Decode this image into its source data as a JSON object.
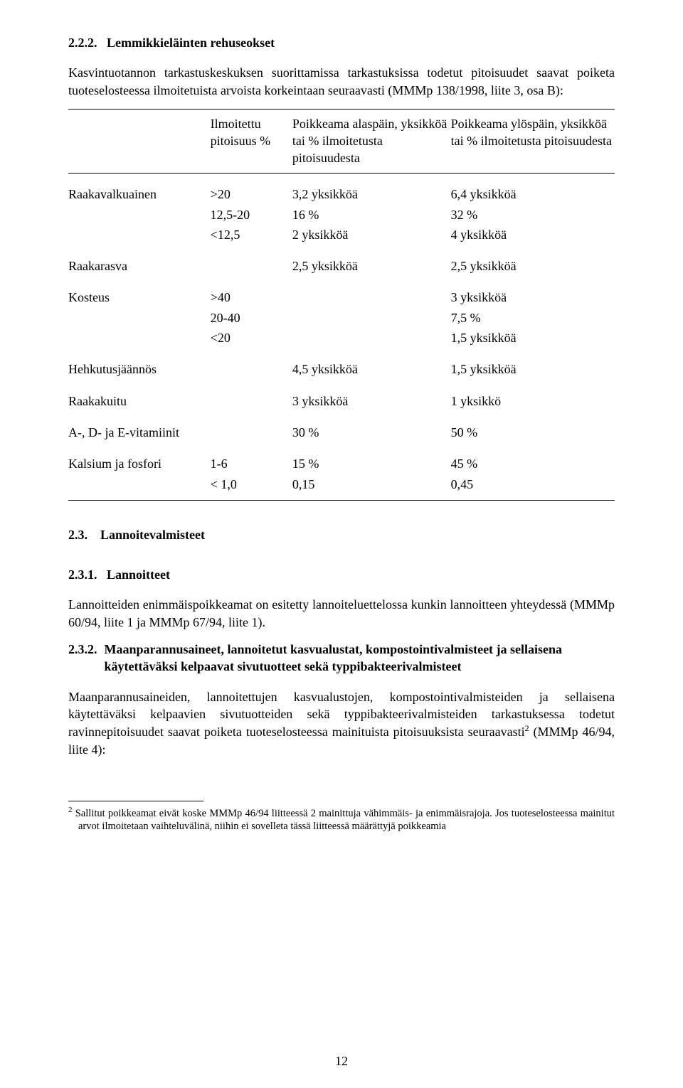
{
  "section_222": {
    "number": "2.2.2.",
    "title": "Lemmikkieläinten rehuseokset",
    "intro": "Kasvintuotannon tarkastuskeskuksen suorittamissa tarkastuksissa todetut pitoisuudet saavat poiketa tuoteselosteessa ilmoitetuista arvoista korkeintaan seuraavasti (MMMp 138/1998, liite 3, osa B):"
  },
  "table": {
    "headers": {
      "c1": "Ilmoitettu pitoisuus %",
      "c2": "Poikkeama alaspäin, yksikköä tai % ilmoitetusta pitoisuudesta",
      "c3": "Poikkeama ylöspäin, yksikköä tai % ilmoitetusta pitoisuudesta"
    },
    "groups": [
      {
        "label": "Raakavalkuainen",
        "rows": [
          {
            "c1": ">20",
            "c2": "3,2 yksikköä",
            "c3": "6,4 yksikköä"
          },
          {
            "c1": "12,5-20",
            "c2": "16 %",
            "c3": "32 %"
          },
          {
            "c1": "<12,5",
            "c2": "2 yksikköä",
            "c3": "4 yksikköä"
          }
        ]
      },
      {
        "label": "Raakarasva",
        "rows": [
          {
            "c1": "",
            "c2": "2,5 yksikköä",
            "c3": "2,5 yksikköä"
          }
        ]
      },
      {
        "label": "Kosteus",
        "rows": [
          {
            "c1": ">40",
            "c2": "",
            "c3": "3 yksikköä"
          },
          {
            "c1": "20-40",
            "c2": "",
            "c3": "7,5 %"
          },
          {
            "c1": "<20",
            "c2": "",
            "c3": "1,5 yksikköä"
          }
        ]
      },
      {
        "label": "Hehkutusjäännös",
        "rows": [
          {
            "c1": "",
            "c2": "4,5 yksikköä",
            "c3": "1,5 yksikköä"
          }
        ]
      },
      {
        "label": "Raakakuitu",
        "rows": [
          {
            "c1": "",
            "c2": "3 yksikköä",
            "c3": "1 yksikkö"
          }
        ]
      },
      {
        "label": "A-, D- ja E-vitamiinit",
        "rows": [
          {
            "c1": "",
            "c2": "30 %",
            "c3": "50 %"
          }
        ]
      },
      {
        "label": "Kalsium ja fosfori",
        "rows": [
          {
            "c1": "1-6",
            "c2": "15 %",
            "c3": "45 %"
          },
          {
            "c1": "< 1,0",
            "c2": "0,15",
            "c3": "0,45"
          }
        ]
      }
    ]
  },
  "section_23": {
    "number": "2.3.",
    "title": "Lannoitevalmisteet"
  },
  "section_231": {
    "number": "2.3.1.",
    "title": "Lannoitteet",
    "para": "Lannoitteiden enimmäispoikkeamat on esitetty lannoiteluettelossa kunkin lannoitteen yhteydessä (MMMp 60/94, liite 1 ja MMMp 67/94, liite 1)."
  },
  "section_232": {
    "number": "2.3.2.",
    "title": "Maanparannusaineet, lannoitetut kasvualustat, kompostointivalmisteet ja sellaisena käytettäväksi kelpaavat sivutuotteet sekä typpibakteerivalmisteet",
    "para_before_ref": "Maanparannusaineiden, lannoitettujen kasvualustojen, kompostointivalmisteiden ja sellaisena käytettäväksi kelpaavien sivutuotteiden sekä typpibakteerivalmisteiden tarkastuksessa todetut ravinnepitoisuudet saavat poiketa tuoteselosteessa mainituista pitoisuuksista seuraavasti",
    "para_after_ref": " (MMMp 46/94, liite 4):",
    "footnote_ref": "2"
  },
  "footnote": {
    "ref": "2",
    "text": "Sallitut poikkeamat eivät koske MMMp 46/94 liitteessä 2 mainittuja vähimmäis- ja enimmäisrajoja. Jos tuoteselosteessa mainitut arvot ilmoitetaan vaihteluvälinä, niihin ei sovelleta tässä liitteessä määrättyjä poikkeamia"
  },
  "page_number": "12"
}
